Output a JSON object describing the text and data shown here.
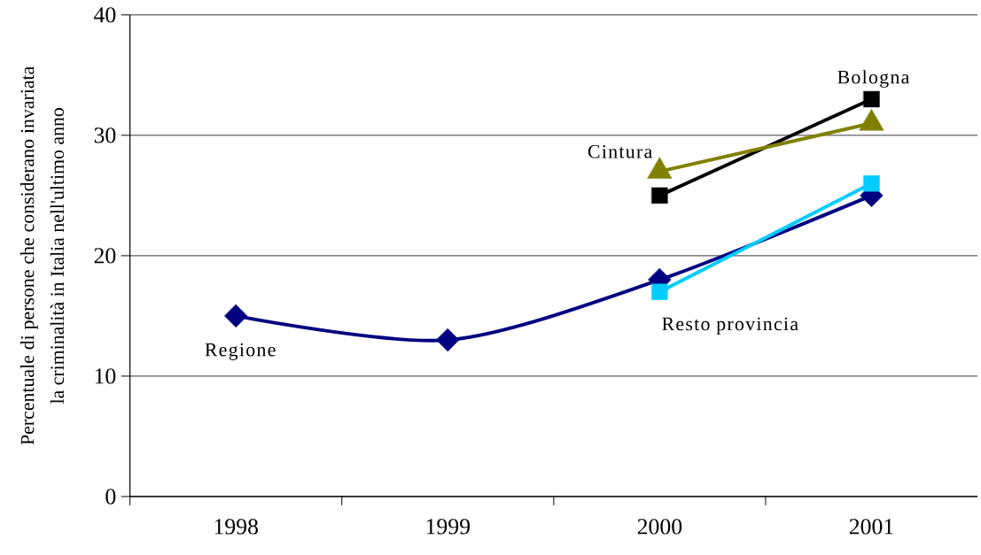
{
  "chart_data": {
    "type": "line",
    "ylabel": "Percentuale di persone che considerano invariata la criminalità in Italia nell'ultimo anno",
    "categories": [
      "1998",
      "1999",
      "2000",
      "2001"
    ],
    "ylim": [
      0,
      40
    ],
    "yticks": [
      0,
      10,
      20,
      30,
      40
    ],
    "grid": "y",
    "line_style": "solid",
    "series": [
      {
        "name": "Regione",
        "color": "#000080",
        "marker": "diamond",
        "values": [
          15,
          13,
          18,
          25
        ]
      },
      {
        "name": "Bologna",
        "color": "#000000",
        "marker": "square",
        "values": [
          null,
          null,
          25,
          33
        ]
      },
      {
        "name": "Cintura",
        "color": "#808000",
        "marker": "triangle",
        "values": [
          null,
          null,
          27,
          31
        ]
      },
      {
        "name": "Resto provincia",
        "color": "#00ccff",
        "marker": "square",
        "values": [
          null,
          null,
          17,
          26
        ]
      }
    ]
  }
}
